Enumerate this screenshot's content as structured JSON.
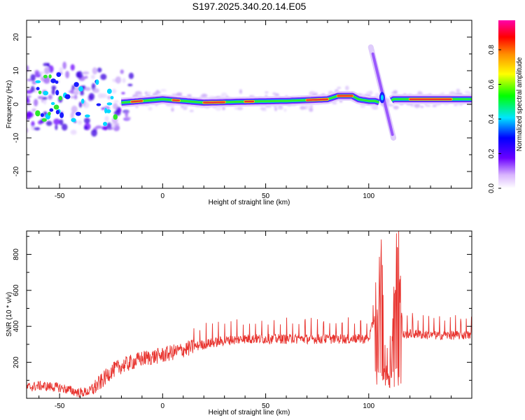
{
  "title": "S197.2025.340.20.14.E05",
  "colors": {
    "snr_line": "#e8342f",
    "frame": "#000000",
    "ridge_red": "#e8342f"
  },
  "chart_data": [
    {
      "type": "heatmap",
      "xlabel": "Height of straight line (km)",
      "ylabel": "Frequency (Hz)",
      "xlim": [
        -66,
        150
      ],
      "ylim": [
        -25,
        25
      ],
      "xticks": [
        -50,
        0,
        50,
        100
      ],
      "yticks": [
        -20,
        -10,
        0,
        10,
        20
      ],
      "ridge": {
        "description": "dominant frequency ridge",
        "x": [
          -60,
          -50,
          -40,
          -30,
          -20,
          -10,
          0,
          10,
          20,
          40,
          60,
          80,
          85,
          92,
          95,
          100,
          103,
          108,
          112,
          130,
          150
        ],
        "frequency": [
          2,
          2,
          1.5,
          0.5,
          0.5,
          1,
          1.5,
          1,
          0.5,
          0.8,
          1,
          1.5,
          2.5,
          2.5,
          1.5,
          1,
          1,
          0,
          1.5,
          1.5,
          1.5
        ]
      },
      "streak": {
        "x_from": 101,
        "x_to": 112,
        "freq_from": 17,
        "freq_to": -10
      },
      "colorbar": {
        "label": "Normalized spectral amplitude",
        "range": [
          0,
          0.97
        ],
        "ticks": [
          "0.0",
          "0.2",
          "0.4",
          "0.6",
          "0.8"
        ]
      }
    },
    {
      "type": "line",
      "xlabel": "Height of straight line (km)",
      "ylabel": "SNR (10 * v/v)",
      "xlim": [
        -66,
        150
      ],
      "ylim": [
        0,
        930
      ],
      "xticks": [
        -50,
        0,
        50,
        100
      ],
      "yticks": [
        200,
        400,
        600,
        800
      ],
      "series": [
        {
          "name": "SNR",
          "x": [
            -66,
            -60,
            -50,
            -40,
            -35,
            -30,
            -25,
            -20,
            -10,
            0,
            10,
            20,
            30,
            40,
            50,
            60,
            70,
            80,
            90,
            100,
            104,
            106,
            108,
            110,
            112,
            114,
            116,
            120,
            130,
            140,
            150
          ],
          "values": [
            60,
            70,
            60,
            30,
            40,
            90,
            150,
            180,
            220,
            240,
            270,
            300,
            320,
            330,
            330,
            330,
            330,
            330,
            330,
            330,
            500,
            700,
            200,
            150,
            400,
            920,
            350,
            360,
            350,
            350,
            350
          ]
        }
      ]
    }
  ]
}
